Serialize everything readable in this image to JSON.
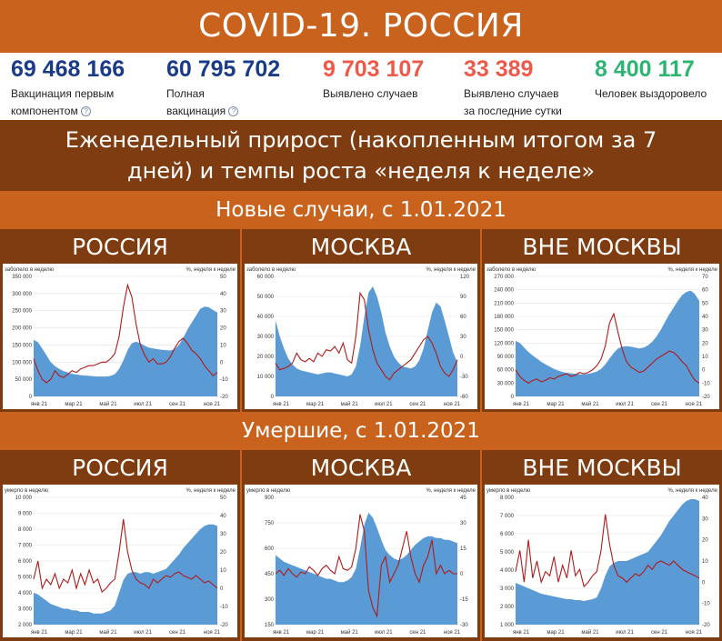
{
  "header": {
    "title": "COVID-19. РОССИЯ"
  },
  "stats": [
    {
      "value": "69 468 166",
      "label1": "Вакцинация первым",
      "label2": "компонентом",
      "help": true,
      "color": "#1a3b87"
    },
    {
      "value": "60 795 702",
      "label1": "Полная",
      "label2": "вакцинация",
      "help": true,
      "color": "#1a3b87"
    },
    {
      "value": "9 703 107",
      "label1": "Выявлено случаев",
      "label2": "",
      "help": false,
      "color": "#ee5a4a"
    },
    {
      "value": "33 389",
      "label1": "Выявлено случаев",
      "label2": "за последние сутки",
      "help": false,
      "color": "#ee5a4a"
    },
    {
      "value": "8 400 117",
      "label1": "Человек выздоровело",
      "label2": "",
      "help": false,
      "color": "#2fb573"
    }
  ],
  "weekly": {
    "line1": "Еженедельный прирост (накопленным итогом за 7",
    "line2": "дней) и темпы роста «неделя к неделе»"
  },
  "sections": {
    "new_cases": "Новые случаи, с 1.01.2021",
    "deaths": "Умершие, с 1.01.2021"
  },
  "colors": {
    "area": "#5b9bd5",
    "line": "#b01a1a",
    "bar_dark": "#7e3c10",
    "bar_orange": "#c8621c"
  },
  "chart_data": [
    {
      "type": "area",
      "title": "РОССИЯ",
      "ylabel": "заболело в неделю",
      "y2label": "%, неделя к неделе",
      "ylim": [
        0,
        350000
      ],
      "yticks": [
        "0",
        "50 000",
        "100 000",
        "150 000",
        "200 000",
        "250 000",
        "300 000",
        "350 000"
      ],
      "y2lim": [
        -20,
        50
      ],
      "y2ticks": [
        "-20",
        "-10",
        "0",
        "10",
        "20",
        "30",
        "40",
        "50"
      ],
      "xticks": [
        "янв 21",
        "мар 21",
        "май 21",
        "июл 21",
        "сен 21",
        "ноя 21"
      ],
      "area": [
        165000,
        158000,
        140000,
        120000,
        100000,
        88000,
        80000,
        74000,
        70000,
        66000,
        64000,
        62000,
        61000,
        60000,
        59000,
        58000,
        58000,
        58000,
        60000,
        65000,
        80000,
        105000,
        135000,
        155000,
        160000,
        155000,
        148000,
        142000,
        140000,
        138000,
        136000,
        135000,
        134000,
        138000,
        150000,
        170000,
        195000,
        215000,
        235000,
        255000,
        262000,
        260000,
        252000,
        245000
      ],
      "line": [
        2,
        -5,
        -10,
        -12,
        -10,
        -5,
        -8,
        -9,
        -7,
        -5,
        -6,
        -4,
        -3,
        -2,
        -2,
        -1,
        0,
        0,
        2,
        5,
        15,
        32,
        45,
        38,
        22,
        10,
        4,
        0,
        2,
        -1,
        -1,
        0,
        3,
        8,
        12,
        14,
        11,
        7,
        5,
        2,
        -2,
        -5,
        -8,
        -6
      ]
    },
    {
      "type": "area",
      "title": "МОСКВА",
      "ylabel": "заболело в неделю",
      "y2label": "%, неделя к неделе",
      "ylim": [
        0,
        60000
      ],
      "yticks": [
        "0",
        "10 000",
        "20 000",
        "30 000",
        "40 000",
        "50 000",
        "60 000"
      ],
      "y2lim": [
        -60,
        120
      ],
      "y2ticks": [
        "-60",
        "-30",
        "0",
        "30",
        "60",
        "90",
        "120"
      ],
      "xticks": [
        "янв 21",
        "мар 21",
        "май 21",
        "июл 21",
        "сен 21",
        "ноя 21"
      ],
      "area": [
        38000,
        30000,
        24000,
        19000,
        16000,
        14000,
        13000,
        12500,
        12000,
        11500,
        11000,
        11500,
        12000,
        12000,
        11500,
        11000,
        10500,
        10000,
        11000,
        15000,
        25000,
        40000,
        52000,
        55000,
        50000,
        42000,
        32000,
        25000,
        20000,
        17000,
        15000,
        14500,
        14000,
        15000,
        18000,
        24000,
        33000,
        42000,
        47000,
        45000,
        38000,
        30000,
        22000,
        17000
      ],
      "line": [
        -10,
        -20,
        -18,
        -15,
        -10,
        5,
        -5,
        -8,
        -3,
        -8,
        5,
        0,
        10,
        8,
        15,
        5,
        20,
        -5,
        -10,
        30,
        95,
        85,
        40,
        10,
        -10,
        -20,
        -30,
        -35,
        -25,
        -20,
        -15,
        -10,
        -5,
        5,
        15,
        25,
        30,
        20,
        5,
        -15,
        -25,
        -30,
        -20,
        -5
      ]
    },
    {
      "type": "area",
      "title": "ВНЕ МОСКВЫ",
      "ylabel": "заболело в неделю",
      "y2label": "%, неделя к неделе",
      "ylim": [
        0,
        270000
      ],
      "yticks": [
        "0",
        "30 000",
        "60 000",
        "90 000",
        "120 000",
        "150 000",
        "180 000",
        "210 000",
        "240 000",
        "270 000"
      ],
      "y2lim": [
        -20,
        70
      ],
      "y2ticks": [
        "-20",
        "-10",
        "0",
        "10",
        "20",
        "30",
        "40",
        "50",
        "60",
        "70"
      ],
      "xticks": [
        "янв 21",
        "мар 21",
        "май 21",
        "июл 21",
        "сен 21",
        "ноя 21"
      ],
      "area": [
        125000,
        120000,
        110000,
        100000,
        92000,
        85000,
        78000,
        72000,
        67000,
        62000,
        58000,
        55000,
        53000,
        52000,
        51000,
        50000,
        50000,
        51000,
        53000,
        56000,
        62000,
        72000,
        85000,
        98000,
        108000,
        112000,
        113000,
        112000,
        110000,
        108000,
        110000,
        115000,
        123000,
        135000,
        150000,
        168000,
        185000,
        200000,
        215000,
        228000,
        235000,
        238000,
        230000,
        215000
      ],
      "line": [
        0,
        -5,
        -8,
        -10,
        -8,
        -7,
        -9,
        -8,
        -6,
        -7,
        -5,
        -4,
        -3,
        -5,
        -4,
        -2,
        -3,
        -2,
        0,
        3,
        8,
        18,
        35,
        42,
        28,
        15,
        6,
        2,
        0,
        -2,
        -1,
        2,
        5,
        8,
        10,
        12,
        14,
        13,
        10,
        6,
        3,
        -3,
        -8,
        -10
      ]
    },
    {
      "type": "area",
      "title": "РОССИЯ",
      "ylabel": "умерло в неделю",
      "y2label": "%, неделя к неделе",
      "ylim": [
        2000,
        10000
      ],
      "yticks": [
        "2 000",
        "3 000",
        "4 000",
        "5 000",
        "6 000",
        "7 000",
        "8 000",
        "9 000",
        "10 000"
      ],
      "y2lim": [
        -20,
        50
      ],
      "y2ticks": [
        "-20",
        "-10",
        "0",
        "10",
        "20",
        "30",
        "40",
        "50"
      ],
      "xticks": [
        "янв 21",
        "мар 21",
        "май 21",
        "июл 21",
        "сен 21",
        "ноя 21"
      ],
      "area": [
        4000,
        3900,
        3700,
        3500,
        3300,
        3200,
        3100,
        3000,
        3000,
        2900,
        2900,
        2800,
        2800,
        2800,
        2700,
        2700,
        2700,
        2800,
        2900,
        3200,
        4000,
        4800,
        5200,
        5300,
        5300,
        5200,
        5300,
        5300,
        5200,
        5300,
        5400,
        5500,
        5800,
        6100,
        6400,
        6800,
        7100,
        7400,
        7700,
        8000,
        8200,
        8300,
        8300,
        8200
      ],
      "line": [
        5,
        15,
        0,
        5,
        2,
        8,
        0,
        5,
        3,
        10,
        0,
        8,
        2,
        10,
        3,
        5,
        -2,
        0,
        3,
        5,
        20,
        38,
        20,
        10,
        5,
        3,
        2,
        0,
        5,
        3,
        5,
        7,
        6,
        8,
        9,
        7,
        6,
        5,
        7,
        5,
        3,
        4,
        2,
        0
      ]
    },
    {
      "type": "area",
      "title": "МОСКВА",
      "ylabel": "умерло в неделю",
      "y2label": "%, неделя к неделе",
      "ylim": [
        150,
        900
      ],
      "yticks": [
        "150",
        "300",
        "450",
        "600",
        "750",
        "900"
      ],
      "y2lim": [
        -30,
        45
      ],
      "y2ticks": [
        "-30",
        "-15",
        "0",
        "15",
        "30",
        "45"
      ],
      "xticks": [
        "янв 21",
        "мар 21",
        "май 21",
        "июл 21",
        "сен 21",
        "ноя 21"
      ],
      "area": [
        560,
        540,
        520,
        510,
        500,
        490,
        480,
        470,
        460,
        450,
        440,
        430,
        420,
        420,
        410,
        400,
        400,
        410,
        430,
        480,
        600,
        740,
        810,
        780,
        720,
        650,
        590,
        560,
        540,
        530,
        540,
        560,
        590,
        620,
        640,
        660,
        670,
        670,
        660,
        660,
        650,
        650,
        640,
        630
      ],
      "line": [
        0,
        2,
        -1,
        3,
        0,
        -2,
        1,
        0,
        4,
        2,
        -1,
        3,
        5,
        2,
        0,
        10,
        3,
        2,
        4,
        15,
        35,
        25,
        -10,
        -20,
        -25,
        5,
        10,
        -5,
        0,
        5,
        15,
        25,
        10,
        0,
        -5,
        5,
        10,
        20,
        0,
        5,
        0,
        2,
        0,
        0
      ]
    },
    {
      "type": "area",
      "title": "ВНЕ МОСКВЫ",
      "ylabel": "умерло в неделю",
      "y2label": "%, неделя к неделе",
      "ylim": [
        1000,
        8000
      ],
      "yticks": [
        "1 000",
        "2 000",
        "3 000",
        "4 000",
        "5 000",
        "6 000",
        "7 000",
        "8 000"
      ],
      "y2lim": [
        -20,
        40
      ],
      "y2ticks": [
        "-20",
        "-10",
        "0",
        "10",
        "20",
        "30",
        "40"
      ],
      "xticks": [
        "янв 21",
        "мар 21",
        "май 21",
        "июл 21",
        "сен 21",
        "ноя 21"
      ],
      "area": [
        3300,
        3200,
        3100,
        3000,
        2900,
        2800,
        2700,
        2650,
        2600,
        2550,
        2500,
        2450,
        2400,
        2400,
        2350,
        2350,
        2300,
        2350,
        2400,
        2500,
        3000,
        3700,
        4200,
        4400,
        4500,
        4500,
        4500,
        4600,
        4700,
        4800,
        4900,
        5000,
        5300,
        5600,
        5900,
        6300,
        6700,
        7000,
        7300,
        7600,
        7800,
        7900,
        7900,
        7800
      ],
      "line": [
        5,
        15,
        0,
        20,
        2,
        10,
        0,
        5,
        3,
        12,
        0,
        8,
        2,
        15,
        3,
        6,
        -2,
        0,
        3,
        5,
        15,
        32,
        18,
        8,
        3,
        2,
        0,
        2,
        4,
        3,
        5,
        8,
        6,
        9,
        10,
        9,
        8,
        10,
        8,
        6,
        5,
        4,
        3,
        2
      ]
    }
  ]
}
